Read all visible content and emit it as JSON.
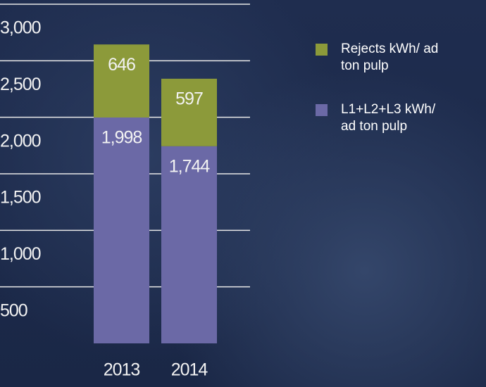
{
  "chart_data": {
    "type": "stacked_bar",
    "categories": [
      "2013",
      "2014"
    ],
    "series": [
      {
        "name": "L1+L2+L3 kWh/ ad ton pulp",
        "color": "#6b69a6",
        "values": [
          1998,
          1744
        ],
        "value_labels": [
          "1,998",
          "1,744"
        ]
      },
      {
        "name": "Rejects kWh/ ad ton pulp",
        "color": "#8c9a3a",
        "values": [
          646,
          597
        ]
      }
    ],
    "ylim": [
      0,
      3000
    ],
    "yticks": [
      500,
      {
        "value": 1000,
        "label": "1,000"
      },
      {
        "value": 1500,
        "label": "1,500"
      },
      {
        "value": 2000,
        "label": "2,000"
      },
      {
        "value": 2500,
        "label": "2,500"
      },
      {
        "value": 3000,
        "label": "3,000"
      }
    ],
    "grid": true
  }
}
